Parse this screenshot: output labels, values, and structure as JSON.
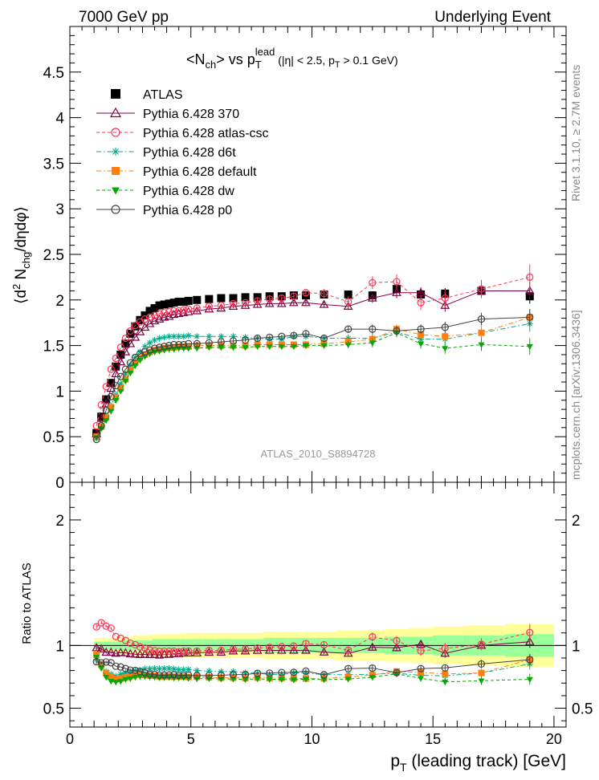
{
  "header": {
    "left": "7000 GeV pp",
    "right": "Underlying Event"
  },
  "side_labels": {
    "top": "Rivet 3.1.10, ≥ 2.7M events",
    "bottom": "mcplots.cern.ch [arXiv:1306.3436]"
  },
  "chart_data": [
    {
      "type": "line",
      "title": "<N_ch> vs p_T^lead (|η| < 2.5, p_T > 0.1 GeV)",
      "title_parts": {
        "main": "<N",
        "sub1": "ch",
        "mid": "> vs p",
        "sub2": "T",
        "sup2": "lead",
        "rest1": " (|η| < 2.5, p",
        "sub3": "T",
        "rest2": " > 0.1 GeV)"
      },
      "ylabel": "⟨d² N_chg/dηdφ⟩",
      "ylabel_parts": {
        "pre": "⟨d",
        "sup": "2",
        "n": " N",
        "sub": "chg",
        "post": "/dηdφ⟩"
      },
      "watermark": "ATLAS_2010_S8894728",
      "xlim": [
        0,
        20.5
      ],
      "ylim": [
        0,
        5
      ],
      "yticks": [
        "0",
        "0.5",
        "1",
        "1.5",
        "2",
        "2.5",
        "3",
        "3.5",
        "4",
        "4.5"
      ],
      "legend_position": "top-left",
      "x": [
        1.1,
        1.3,
        1.5,
        1.7,
        1.9,
        2.1,
        2.3,
        2.5,
        2.7,
        2.9,
        3.1,
        3.3,
        3.5,
        3.7,
        3.9,
        4.1,
        4.3,
        4.5,
        4.7,
        4.9,
        5.25,
        5.75,
        6.25,
        6.75,
        7.25,
        7.75,
        8.25,
        8.75,
        9.25,
        9.75,
        10.5,
        11.5,
        12.5,
        13.5,
        14.5,
        15.5,
        17.0,
        19.0
      ],
      "series": [
        {
          "name": "ATLAS",
          "color": "#000000",
          "marker": "square",
          "line": "none",
          "values": [
            0.54,
            0.72,
            0.91,
            1.09,
            1.27,
            1.4,
            1.52,
            1.63,
            1.71,
            1.78,
            1.83,
            1.88,
            1.91,
            1.94,
            1.95,
            1.96,
            1.97,
            1.98,
            1.98,
            1.99,
            2.0,
            2.01,
            2.02,
            2.02,
            2.03,
            2.03,
            2.04,
            2.04,
            2.05,
            2.05,
            2.06,
            2.06,
            2.05,
            2.12,
            2.06,
            2.07,
            2.1,
            2.04
          ],
          "errors": [
            0.02,
            0.02,
            0.02,
            0.02,
            0.02,
            0.02,
            0.02,
            0.02,
            0.02,
            0.02,
            0.02,
            0.02,
            0.02,
            0.02,
            0.02,
            0.02,
            0.02,
            0.02,
            0.02,
            0.02,
            0.02,
            0.02,
            0.02,
            0.02,
            0.02,
            0.03,
            0.03,
            0.03,
            0.03,
            0.03,
            0.03,
            0.04,
            0.04,
            0.05,
            0.05,
            0.06,
            0.07,
            0.08
          ]
        },
        {
          "name": "Pythia 6.428 370",
          "color": "#800040",
          "marker": "triangle",
          "line": "solid",
          "values": [
            0.53,
            0.7,
            0.86,
            1.03,
            1.19,
            1.32,
            1.43,
            1.52,
            1.59,
            1.65,
            1.7,
            1.74,
            1.77,
            1.79,
            1.81,
            1.82,
            1.84,
            1.85,
            1.86,
            1.87,
            1.88,
            1.9,
            1.91,
            1.93,
            1.94,
            1.95,
            1.96,
            1.96,
            1.97,
            1.97,
            1.95,
            1.93,
            2.02,
            2.08,
            2.08,
            1.94,
            2.1,
            2.1
          ],
          "errors": [
            0.01,
            0.01,
            0.01,
            0.01,
            0.01,
            0.01,
            0.01,
            0.01,
            0.01,
            0.01,
            0.01,
            0.01,
            0.01,
            0.01,
            0.01,
            0.01,
            0.01,
            0.01,
            0.01,
            0.01,
            0.02,
            0.02,
            0.02,
            0.02,
            0.02,
            0.03,
            0.03,
            0.03,
            0.03,
            0.03,
            0.03,
            0.04,
            0.05,
            0.06,
            0.06,
            0.07,
            0.08,
            0.1
          ]
        },
        {
          "name": "Pythia 6.428 atlas-csc",
          "color": "#ff3355",
          "marker": "circle-open",
          "line": "dashed",
          "values": [
            0.62,
            0.85,
            1.05,
            1.24,
            1.36,
            1.48,
            1.58,
            1.66,
            1.72,
            1.76,
            1.79,
            1.81,
            1.83,
            1.85,
            1.86,
            1.87,
            1.88,
            1.88,
            1.89,
            1.9,
            1.91,
            1.93,
            1.94,
            1.96,
            1.97,
            1.99,
            2.01,
            2.02,
            2.04,
            2.08,
            2.07,
            1.98,
            2.19,
            2.2,
            1.97,
            2.02,
            2.12,
            2.25
          ],
          "errors": [
            0.01,
            0.01,
            0.01,
            0.01,
            0.01,
            0.01,
            0.01,
            0.01,
            0.01,
            0.01,
            0.01,
            0.01,
            0.01,
            0.01,
            0.01,
            0.01,
            0.01,
            0.01,
            0.01,
            0.01,
            0.02,
            0.02,
            0.02,
            0.02,
            0.02,
            0.03,
            0.03,
            0.03,
            0.04,
            0.04,
            0.05,
            0.06,
            0.07,
            0.08,
            0.08,
            0.09,
            0.1,
            0.14
          ]
        },
        {
          "name": "Pythia 6.428 d6t",
          "color": "#00aa88",
          "marker": "star",
          "line": "dashdot",
          "values": [
            0.48,
            0.6,
            0.72,
            0.84,
            0.96,
            1.08,
            1.19,
            1.29,
            1.37,
            1.43,
            1.49,
            1.53,
            1.56,
            1.58,
            1.59,
            1.6,
            1.6,
            1.6,
            1.6,
            1.61,
            1.6,
            1.6,
            1.6,
            1.6,
            1.59,
            1.58,
            1.57,
            1.57,
            1.6,
            1.6,
            1.58,
            1.58,
            1.58,
            1.65,
            1.57,
            1.57,
            1.64,
            1.74
          ],
          "errors": [
            0.01,
            0.01,
            0.01,
            0.01,
            0.01,
            0.01,
            0.01,
            0.01,
            0.01,
            0.01,
            0.01,
            0.01,
            0.01,
            0.01,
            0.01,
            0.01,
            0.01,
            0.01,
            0.01,
            0.01,
            0.02,
            0.02,
            0.02,
            0.02,
            0.02,
            0.02,
            0.02,
            0.02,
            0.03,
            0.03,
            0.03,
            0.04,
            0.05,
            0.05,
            0.05,
            0.06,
            0.07,
            0.09
          ]
        },
        {
          "name": "Pythia 6.428 default",
          "color": "#ff7f0e",
          "marker": "square",
          "line": "dashdot",
          "values": [
            0.5,
            0.61,
            0.71,
            0.82,
            0.93,
            1.03,
            1.13,
            1.23,
            1.31,
            1.37,
            1.4,
            1.43,
            1.45,
            1.46,
            1.47,
            1.48,
            1.48,
            1.49,
            1.49,
            1.49,
            1.5,
            1.5,
            1.5,
            1.5,
            1.5,
            1.51,
            1.51,
            1.51,
            1.51,
            1.51,
            1.52,
            1.54,
            1.57,
            1.68,
            1.62,
            1.6,
            1.64,
            1.81
          ],
          "errors": [
            0.01,
            0.01,
            0.01,
            0.01,
            0.01,
            0.01,
            0.01,
            0.01,
            0.01,
            0.01,
            0.01,
            0.01,
            0.01,
            0.01,
            0.01,
            0.01,
            0.01,
            0.01,
            0.01,
            0.01,
            0.02,
            0.02,
            0.02,
            0.02,
            0.02,
            0.02,
            0.02,
            0.02,
            0.03,
            0.03,
            0.03,
            0.04,
            0.05,
            0.05,
            0.05,
            0.06,
            0.07,
            0.09
          ]
        },
        {
          "name": "Pythia 6.428 dw",
          "color": "#00aa00",
          "marker": "triangle-down",
          "line": "dashed",
          "values": [
            0.49,
            0.59,
            0.68,
            0.78,
            0.9,
            1.0,
            1.11,
            1.2,
            1.28,
            1.34,
            1.38,
            1.41,
            1.43,
            1.44,
            1.45,
            1.46,
            1.46,
            1.47,
            1.47,
            1.47,
            1.47,
            1.48,
            1.48,
            1.48,
            1.48,
            1.49,
            1.49,
            1.49,
            1.49,
            1.5,
            1.5,
            1.51,
            1.53,
            1.64,
            1.52,
            1.47,
            1.51,
            1.49
          ],
          "errors": [
            0.01,
            0.01,
            0.01,
            0.01,
            0.01,
            0.01,
            0.01,
            0.01,
            0.01,
            0.01,
            0.01,
            0.01,
            0.01,
            0.01,
            0.01,
            0.01,
            0.01,
            0.01,
            0.01,
            0.01,
            0.02,
            0.02,
            0.02,
            0.02,
            0.02,
            0.02,
            0.02,
            0.02,
            0.03,
            0.03,
            0.03,
            0.04,
            0.05,
            0.05,
            0.05,
            0.06,
            0.07,
            0.09
          ]
        },
        {
          "name": "Pythia 6.428 p0",
          "color": "#444444",
          "marker": "circle-open",
          "line": "solid",
          "values": [
            0.47,
            0.62,
            0.79,
            0.94,
            1.06,
            1.16,
            1.24,
            1.31,
            1.37,
            1.41,
            1.43,
            1.45,
            1.47,
            1.48,
            1.49,
            1.5,
            1.51,
            1.51,
            1.51,
            1.52,
            1.52,
            1.53,
            1.54,
            1.55,
            1.56,
            1.58,
            1.59,
            1.6,
            1.61,
            1.63,
            1.58,
            1.68,
            1.68,
            1.66,
            1.68,
            1.7,
            1.79,
            1.81
          ],
          "errors": [
            0.01,
            0.01,
            0.01,
            0.01,
            0.01,
            0.01,
            0.01,
            0.01,
            0.01,
            0.01,
            0.01,
            0.01,
            0.01,
            0.01,
            0.01,
            0.01,
            0.01,
            0.01,
            0.01,
            0.01,
            0.02,
            0.02,
            0.02,
            0.02,
            0.02,
            0.02,
            0.02,
            0.02,
            0.03,
            0.03,
            0.03,
            0.04,
            0.05,
            0.05,
            0.05,
            0.06,
            0.07,
            0.09
          ]
        }
      ]
    },
    {
      "type": "line",
      "ylabel": "Ratio to ATLAS",
      "xlabel": "p_T (leading track) [GeV]",
      "xlabel_parts": {
        "p": "p",
        "sub": "T",
        "rest": " (leading track) [GeV]"
      },
      "xlim": [
        0,
        20.5
      ],
      "ylim": [
        0.35,
        2.3
      ],
      "xticks": [
        "0",
        "5",
        "10",
        "15",
        "20"
      ],
      "yticks": [
        "0.5",
        "1",
        "2"
      ],
      "band_inner": [
        0.03,
        0.03,
        0.03,
        0.03,
        0.03,
        0.04,
        0.04,
        0.04,
        0.04,
        0.04,
        0.04,
        0.04,
        0.05,
        0.05,
        0.05,
        0.05,
        0.05,
        0.05,
        0.05,
        0.05,
        0.05,
        0.05,
        0.05,
        0.05,
        0.05,
        0.05,
        0.06,
        0.06,
        0.06,
        0.06,
        0.06,
        0.06,
        0.06,
        0.07,
        0.07,
        0.08,
        0.08,
        0.09
      ],
      "band_outer": [
        0.06,
        0.06,
        0.06,
        0.06,
        0.06,
        0.07,
        0.07,
        0.07,
        0.08,
        0.08,
        0.08,
        0.08,
        0.09,
        0.09,
        0.09,
        0.09,
        0.09,
        0.09,
        0.1,
        0.1,
        0.1,
        0.1,
        0.1,
        0.1,
        0.1,
        0.1,
        0.11,
        0.11,
        0.11,
        0.11,
        0.11,
        0.12,
        0.12,
        0.13,
        0.14,
        0.15,
        0.16,
        0.17
      ]
    }
  ]
}
